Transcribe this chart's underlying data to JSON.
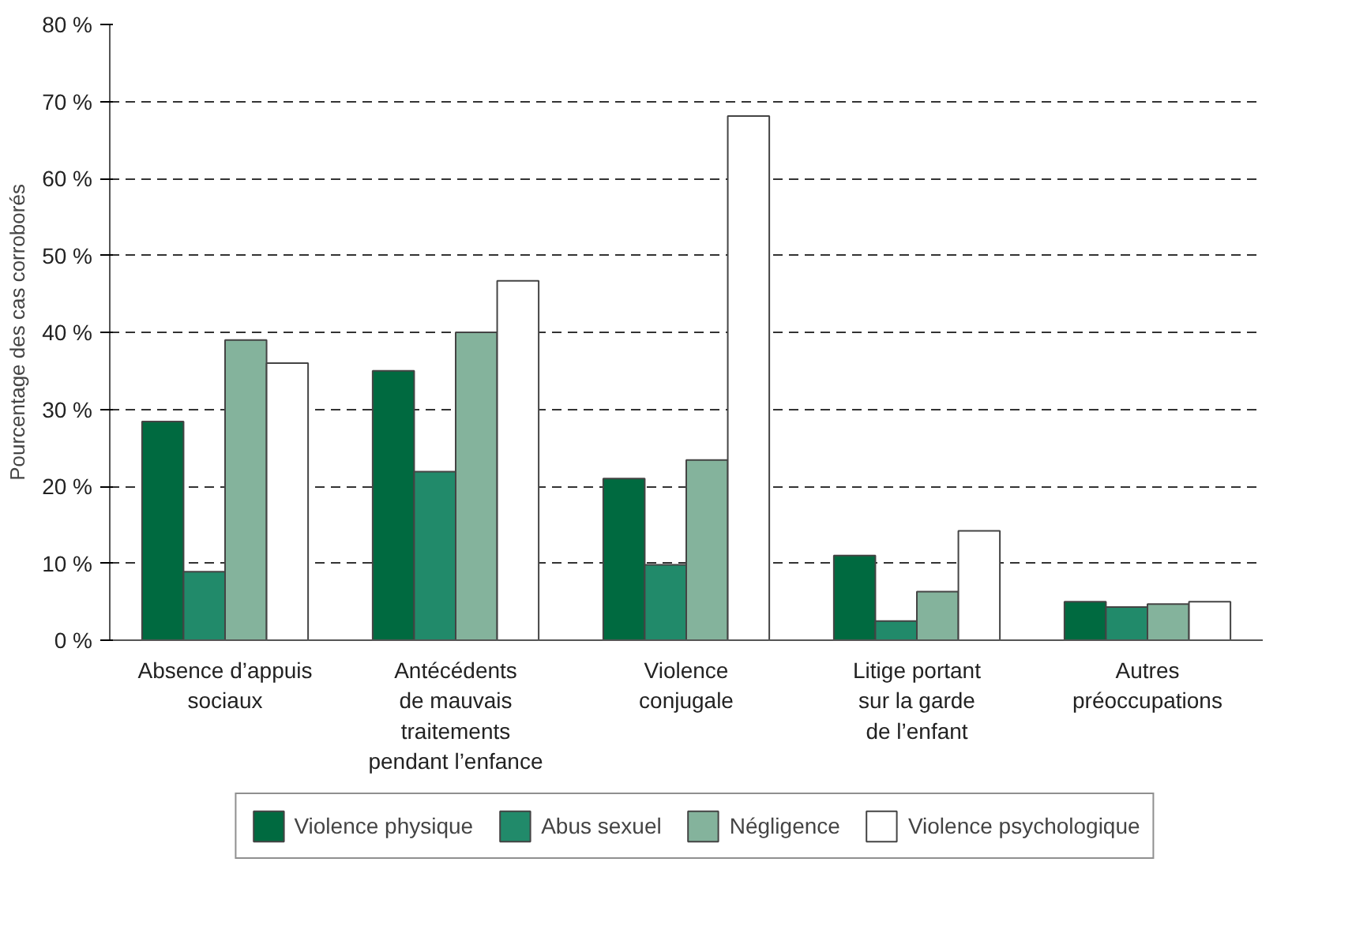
{
  "chart_data": {
    "type": "bar",
    "ylabel": "Pourcentage des cas corroborés",
    "categories": [
      "Absence d’appuis\nsociaux",
      "Antécédents\nde mauvais\ntraitements\npendant l’enfance",
      "Violence\nconjugale",
      "Litige portant\nsur la garde\nde l’enfant",
      "Autres\npréoccupations"
    ],
    "series": [
      {
        "name": "Violence physique",
        "color": "#006a40",
        "values": [
          28.4,
          35.0,
          21.0,
          11.0,
          5.0
        ]
      },
      {
        "name": "Abus sexuel",
        "color": "#218a6a",
        "values": [
          8.9,
          21.9,
          9.8,
          2.5,
          4.3
        ]
      },
      {
        "name": "Négligence",
        "color": "#84b39c",
        "values": [
          39.0,
          40.0,
          23.4,
          6.3,
          4.7
        ]
      },
      {
        "name": "Violence psychologique",
        "color": "#ffffff",
        "values": [
          36.0,
          46.7,
          68.1,
          14.2,
          5.0
        ]
      }
    ],
    "ylim": [
      0,
      80
    ],
    "yticks": [
      {
        "value": 0,
        "label": "0 %"
      },
      {
        "value": 10,
        "label": "10 %"
      },
      {
        "value": 20,
        "label": "20 %"
      },
      {
        "value": 30,
        "label": "30 %"
      },
      {
        "value": 40,
        "label": "40 %"
      },
      {
        "value": 50,
        "label": "50 %"
      },
      {
        "value": 60,
        "label": "60 %"
      },
      {
        "value": 70,
        "label": "70 %"
      },
      {
        "value": 80,
        "label": "80 %"
      }
    ],
    "grid": "y",
    "legend": "bottom"
  }
}
